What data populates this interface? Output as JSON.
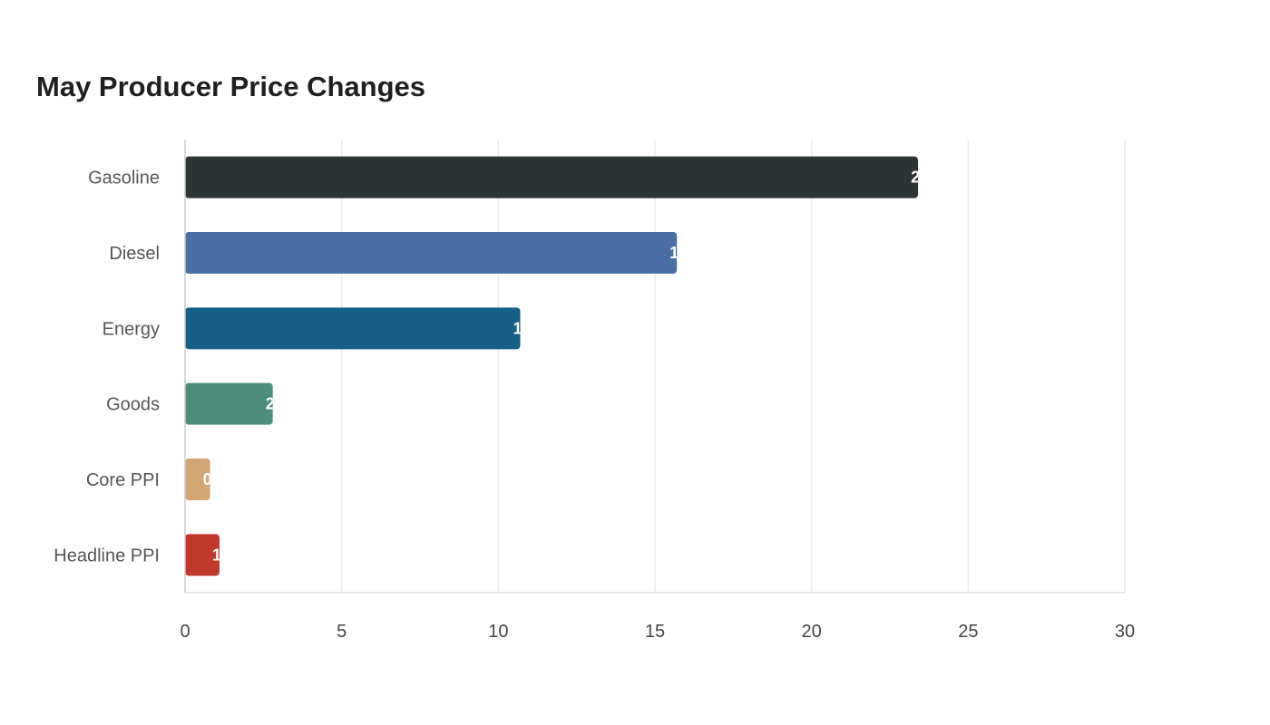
{
  "chart_data": {
    "type": "bar",
    "orientation": "horizontal",
    "title": "May Producer Price Changes",
    "xlabel": "",
    "ylabel": "",
    "categories": [
      "Gasoline",
      "Diesel",
      "Energy",
      "Goods",
      "Core PPI",
      "Headline PPI"
    ],
    "values": [
      23.4,
      15.7,
      10.7,
      2.8,
      0.8,
      1.1
    ],
    "colors": [
      "#2d3436",
      "#4a6fa5",
      "#166088",
      "#4e8d7c",
      "#d4a574",
      "#c0392b"
    ],
    "xlim": [
      0,
      30
    ],
    "xticks": [
      0,
      5,
      10,
      15,
      20,
      25,
      30
    ],
    "grid": "vertical",
    "legend": "none"
  }
}
